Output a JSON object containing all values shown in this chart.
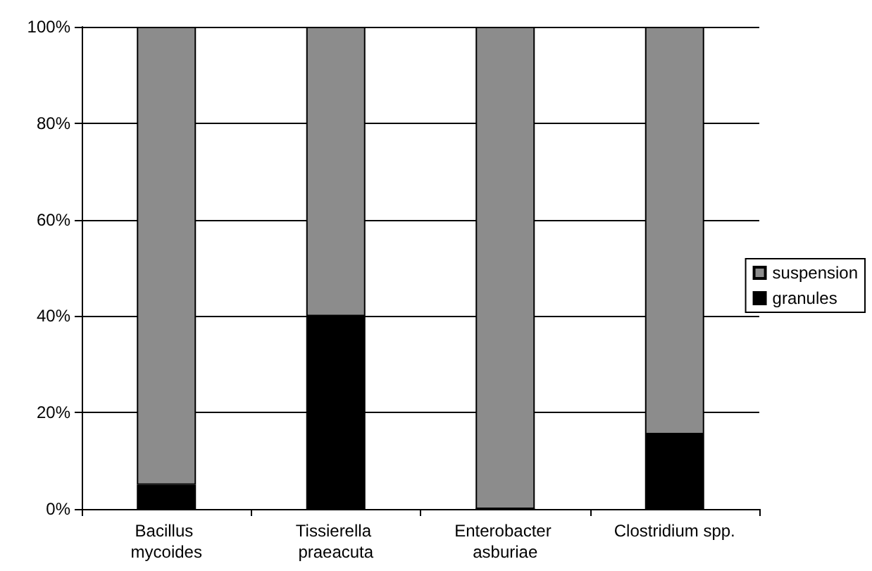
{
  "chart_data": {
    "type": "bar",
    "stacked": true,
    "categories": [
      "Bacillus mycoides",
      "Tissierella praeacuta",
      "Enterobacter asburiae",
      "Clostridium spp."
    ],
    "series": [
      {
        "name": "granules",
        "color": "#000000",
        "values": [
          5,
          40,
          0,
          15.5
        ]
      },
      {
        "name": "suspension",
        "color": "#8c8c8c",
        "values": [
          95,
          60,
          100,
          84.5
        ]
      }
    ],
    "ylim": [
      0,
      100
    ],
    "yticks": [
      {
        "value": 0,
        "label": "0%"
      },
      {
        "value": 20,
        "label": "20%"
      },
      {
        "value": 40,
        "label": "40%"
      },
      {
        "value": 60,
        "label": "60%"
      },
      {
        "value": 80,
        "label": "80%"
      },
      {
        "value": 100,
        "label": "100%"
      }
    ],
    "grid": "y",
    "legend": "right"
  }
}
